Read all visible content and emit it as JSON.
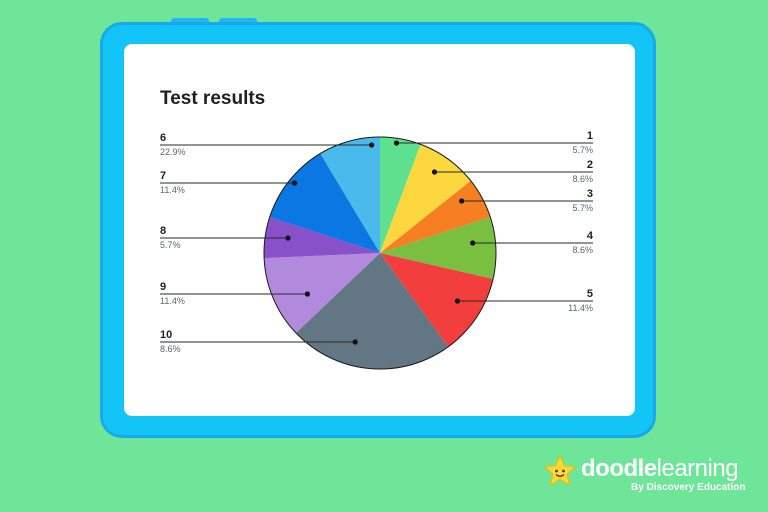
{
  "chart_data": {
    "type": "pie",
    "title": "Test results",
    "slices": [
      {
        "label": "1",
        "value": 5.7,
        "pct_label": "5.7%",
        "color": "#5fe08e"
      },
      {
        "label": "2",
        "value": 8.6,
        "pct_label": "8.6%",
        "color": "#fdd73e"
      },
      {
        "label": "3",
        "value": 5.7,
        "pct_label": "5.7%",
        "color": "#f57f22"
      },
      {
        "label": "4",
        "value": 8.6,
        "pct_label": "8.6%",
        "color": "#79bf40"
      },
      {
        "label": "5",
        "value": 11.4,
        "pct_label": "11.4%",
        "color": "#f33e3e"
      },
      {
        "label": "6",
        "value": 22.9,
        "pct_label": "22.9%",
        "color": "#627683"
      },
      {
        "label": "7",
        "value": 11.4,
        "pct_label": "11.4%",
        "color": "#b18ade"
      },
      {
        "label": "8",
        "value": 5.7,
        "pct_label": "5.7%",
        "color": "#8951c9"
      },
      {
        "label": "9",
        "value": 11.4,
        "pct_label": "11.4%",
        "color": "#0a77e2"
      },
      {
        "label": "10",
        "value": 8.6,
        "pct_label": "8.6%",
        "color": "#4ab9ec"
      }
    ],
    "start": "12 o'clock",
    "direction": "clockwise",
    "legend": "leader-line labels left and right"
  },
  "brand": {
    "name_bold": "doodle",
    "name_light": "learning",
    "tagline": "By Discovery Education",
    "star_color": "#fdd73e"
  }
}
